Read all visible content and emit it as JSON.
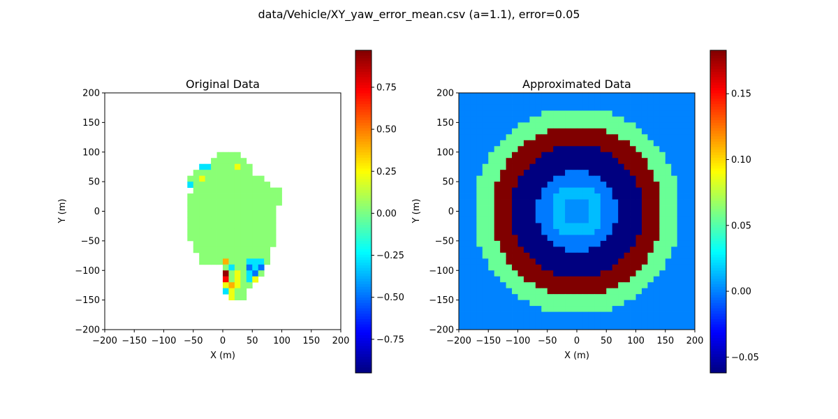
{
  "figure": {
    "suptitle": "data/Vehicle/XY_yaw_error_mean.csv (a=1.1), error=0.05"
  },
  "chart_data": [
    {
      "type": "heatmap",
      "title": "Original Data",
      "xlabel": "X (m)",
      "ylabel": "Y (m)",
      "xlim": [
        -200,
        200
      ],
      "ylim": [
        -200,
        200
      ],
      "xticks": [
        -200,
        -150,
        -100,
        -50,
        0,
        50,
        100,
        150,
        200
      ],
      "yticks": [
        -200,
        -150,
        -100,
        -50,
        0,
        50,
        100,
        150,
        200
      ],
      "colormap": "jet",
      "colorbar": {
        "vmin": -0.95,
        "vmax": 0.97,
        "ticks": [
          -0.75,
          -0.5,
          -0.25,
          0.0,
          0.25,
          0.5,
          0.75
        ],
        "tick_labels": [
          "−0.75",
          "−0.50",
          "−0.25",
          "0.00",
          "0.25",
          "0.50",
          "0.75"
        ]
      },
      "cell_size": 10,
      "grid_origin": [
        -200,
        -200
      ],
      "grid_size": [
        40,
        40
      ],
      "row_order": "top-to-bottom",
      "pixel_rows": [
        "........................................",
        "........................................",
        "........................................",
        "........................................",
        "........................................",
        "........................................",
        "........................................",
        "........................................",
        "........................................",
        "........................................",
        "...................GGGG.................",
        "..................GGGGGG................",
        "................CCGGGGYGG...............",
        "...............GGGGGGGGGG...............",
        "..............GGYGGGGGGGGGG.............",
        "..............CGGGGGGGGGGGGG............",
        "...............GGGGGGGGGGGGGGG..........",
        "..............GGGGGGGGGGGGGGGG..........",
        "..............GGGGGGGGGGGGGGGG..........",
        "..............GGGGGGGGGGGGGGG...........",
        "..............GGGGGGGGGGGGGGG...........",
        "..............GGGGGGGGGGGGGGG...........",
        "..............GGGGGGGGGGGGGGG...........",
        "..............GGGGGGGGGGGGGGG...........",
        "..............GGGGGGGGGGGGGGG...........",
        "...............GGGGGGGGGGGGGG...........",
        "...............GGGGGGGGGGGGG............",
        "................GGGGGGGGGGGG............",
        "................GGGGOGGGCCCG............",
        "....................GCGGBCB.............",
        "....................KGYGCBG.............",
        "....................RGYGCY..............",
        "....................YOYGG...............",
        "....................CYGG................",
        ".....................YGG................",
        "........................................",
        "........................................",
        "........................................",
        "........................................",
        "........................................"
      ],
      "palette": {
        "G": 0.03,
        "Y": 0.22,
        "C": -0.28,
        "B": -0.5,
        "O": 0.4,
        "R": 0.72,
        "K": 0.93
      }
    },
    {
      "type": "heatmap",
      "title": "Approximated Data",
      "xlabel": "X (m)",
      "ylabel": "Y (m)",
      "xlim": [
        -200,
        200
      ],
      "ylim": [
        -200,
        200
      ],
      "xticks": [
        -200,
        -150,
        -100,
        -50,
        0,
        50,
        100,
        150,
        200
      ],
      "yticks": [
        -200,
        -150,
        -100,
        -50,
        0,
        50,
        100,
        150,
        200
      ],
      "colormap": "jet",
      "colorbar": {
        "vmin": -0.062,
        "vmax": 0.183,
        "ticks": [
          -0.05,
          0.0,
          0.05,
          0.1,
          0.15
        ],
        "tick_labels": [
          "−0.05",
          "0.00",
          "0.05",
          "0.10",
          "0.15"
        ]
      },
      "cell_size": 10,
      "grid_origin": [
        -200,
        -200
      ],
      "grid_size": [
        40,
        40
      ],
      "rings": [
        {
          "r_max": 25,
          "value": 0.003
        },
        {
          "r_max": 45,
          "value": 0.014
        },
        {
          "r_max": 68,
          "value": -0.002
        },
        {
          "r_max": 112,
          "value": -0.062
        },
        {
          "r_max": 145,
          "value": 0.183
        },
        {
          "r_max": 175,
          "value": 0.055
        },
        {
          "r_max": 1000,
          "value": 0.0
        }
      ]
    }
  ]
}
